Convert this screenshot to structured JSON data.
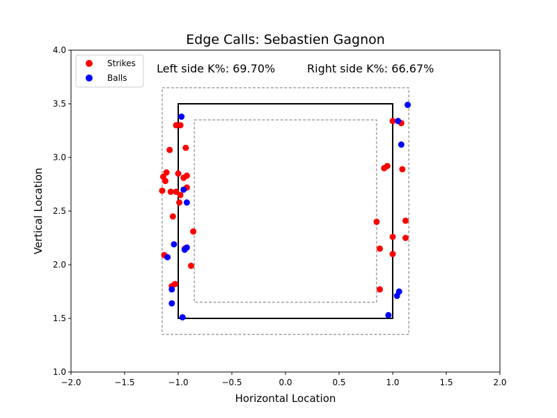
{
  "chart_data": {
    "type": "scatter",
    "title": "Edge Calls: Sebastien Gagnon",
    "xlabel": "Horizontal Location",
    "ylabel": "Vertical Location",
    "xlim": [
      -2.0,
      2.0
    ],
    "ylim": [
      1.0,
      4.0
    ],
    "xticks": [
      "−2.0",
      "−1.5",
      "−1.0",
      "−0.5",
      "0.0",
      "0.5",
      "1.0",
      "1.5",
      "2.0"
    ],
    "yticks": [
      "1.0",
      "1.5",
      "2.0",
      "2.5",
      "3.0",
      "3.5",
      "4.0"
    ],
    "grid": false,
    "legend_position": "top-left",
    "annotations": {
      "left": "Left side K%: 69.70%",
      "right": "Right side K%: 66.67%"
    },
    "strike_zone": {
      "x": [
        -1.0,
        1.0
      ],
      "y": [
        1.5,
        3.5
      ]
    },
    "outer_edge": {
      "x": [
        -1.15,
        1.15
      ],
      "y": [
        1.35,
        3.65
      ]
    },
    "inner_edge": {
      "x": [
        -0.85,
        0.85
      ],
      "y": [
        1.65,
        3.35
      ]
    },
    "series": [
      {
        "name": "Strikes",
        "color": "#ff0000",
        "points": [
          [
            -1.02,
            3.3
          ],
          [
            -0.98,
            3.3
          ],
          [
            -1.08,
            3.07
          ],
          [
            -0.93,
            3.09
          ],
          [
            -1.14,
            2.82
          ],
          [
            -1.11,
            2.86
          ],
          [
            -1.0,
            2.85
          ],
          [
            -0.95,
            2.81
          ],
          [
            -0.92,
            2.83
          ],
          [
            -1.12,
            2.78
          ],
          [
            -1.15,
            2.69
          ],
          [
            -1.07,
            2.68
          ],
          [
            -1.02,
            2.68
          ],
          [
            -0.98,
            2.65
          ],
          [
            -0.92,
            2.72
          ],
          [
            -0.99,
            2.58
          ],
          [
            -1.05,
            2.45
          ],
          [
            -0.86,
            2.31
          ],
          [
            -0.94,
            2.15
          ],
          [
            -1.13,
            2.09
          ],
          [
            -0.88,
            1.99
          ],
          [
            -1.03,
            1.82
          ],
          [
            -1.06,
            1.8
          ],
          [
            1.0,
            3.34
          ],
          [
            1.08,
            3.32
          ],
          [
            0.95,
            2.92
          ],
          [
            0.92,
            2.9
          ],
          [
            1.09,
            2.89
          ],
          [
            0.85,
            2.4
          ],
          [
            1.12,
            2.41
          ],
          [
            1.0,
            2.26
          ],
          [
            1.12,
            2.25
          ],
          [
            0.88,
            2.15
          ],
          [
            1.0,
            2.1
          ],
          [
            0.88,
            1.77
          ]
        ]
      },
      {
        "name": "Balls",
        "color": "#0000ff",
        "points": [
          [
            -0.97,
            3.38
          ],
          [
            -0.95,
            2.7
          ],
          [
            -0.92,
            2.58
          ],
          [
            -1.04,
            2.19
          ],
          [
            -0.92,
            2.16
          ],
          [
            -0.94,
            2.14
          ],
          [
            -1.1,
            2.07
          ],
          [
            -1.06,
            1.77
          ],
          [
            -1.06,
            1.64
          ],
          [
            -0.96,
            1.51
          ],
          [
            1.14,
            3.49
          ],
          [
            1.05,
            3.34
          ],
          [
            1.08,
            3.12
          ],
          [
            1.06,
            1.75
          ],
          [
            1.04,
            1.71
          ],
          [
            0.96,
            1.53
          ]
        ]
      }
    ]
  }
}
